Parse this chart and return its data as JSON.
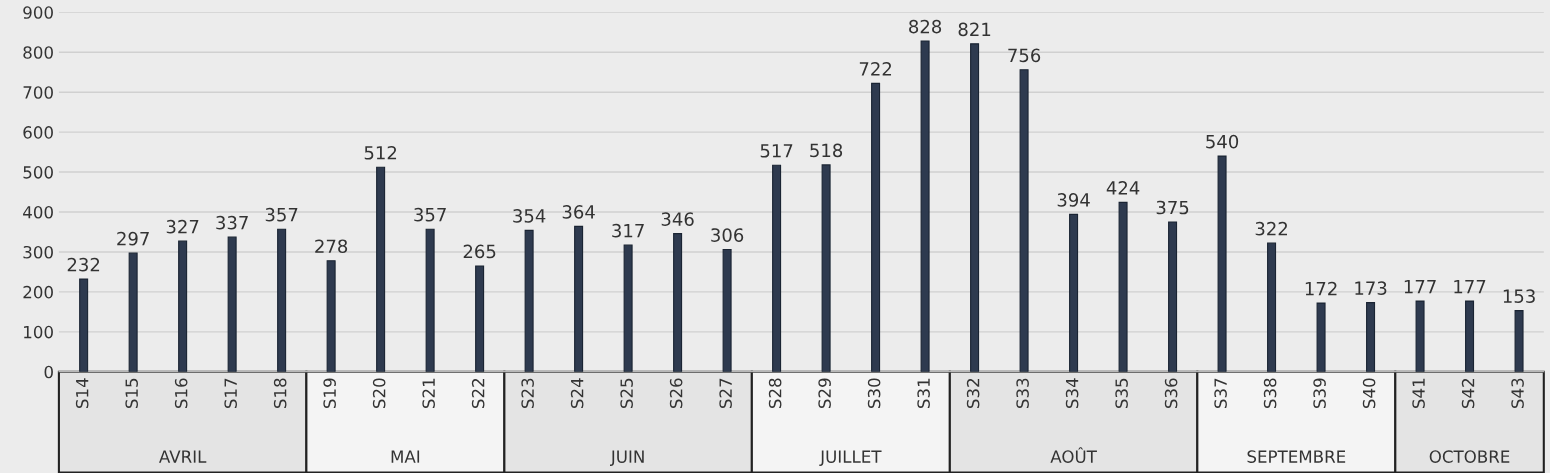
{
  "chart_data": {
    "type": "bar",
    "categories": [
      "S14",
      "S15",
      "S16",
      "S17",
      "S18",
      "S19",
      "S20",
      "S21",
      "S22",
      "S23",
      "S24",
      "S25",
      "S26",
      "S27",
      "S28",
      "S29",
      "S30",
      "S31",
      "S32",
      "S33",
      "S34",
      "S35",
      "S36",
      "S37",
      "S38",
      "S39",
      "S40",
      "S41",
      "S42",
      "S43"
    ],
    "values": [
      232,
      297,
      327,
      337,
      357,
      278,
      512,
      357,
      265,
      354,
      364,
      317,
      346,
      306,
      517,
      518,
      722,
      828,
      821,
      756,
      394,
      424,
      375,
      540,
      322,
      172,
      173,
      177,
      177,
      153
    ],
    "color": "#2e3a4f",
    "ylim": [
      0,
      900
    ],
    "yticks": [
      0,
      100,
      200,
      300,
      400,
      500,
      600,
      700,
      800,
      900
    ],
    "grid": "y",
    "data_labels": true,
    "annotations": [
      "AVRIL",
      "MAI",
      "JUIN",
      "JUILLET",
      "AOÛT",
      "SEPTEMBRE",
      "OCTOBRE"
    ]
  }
}
